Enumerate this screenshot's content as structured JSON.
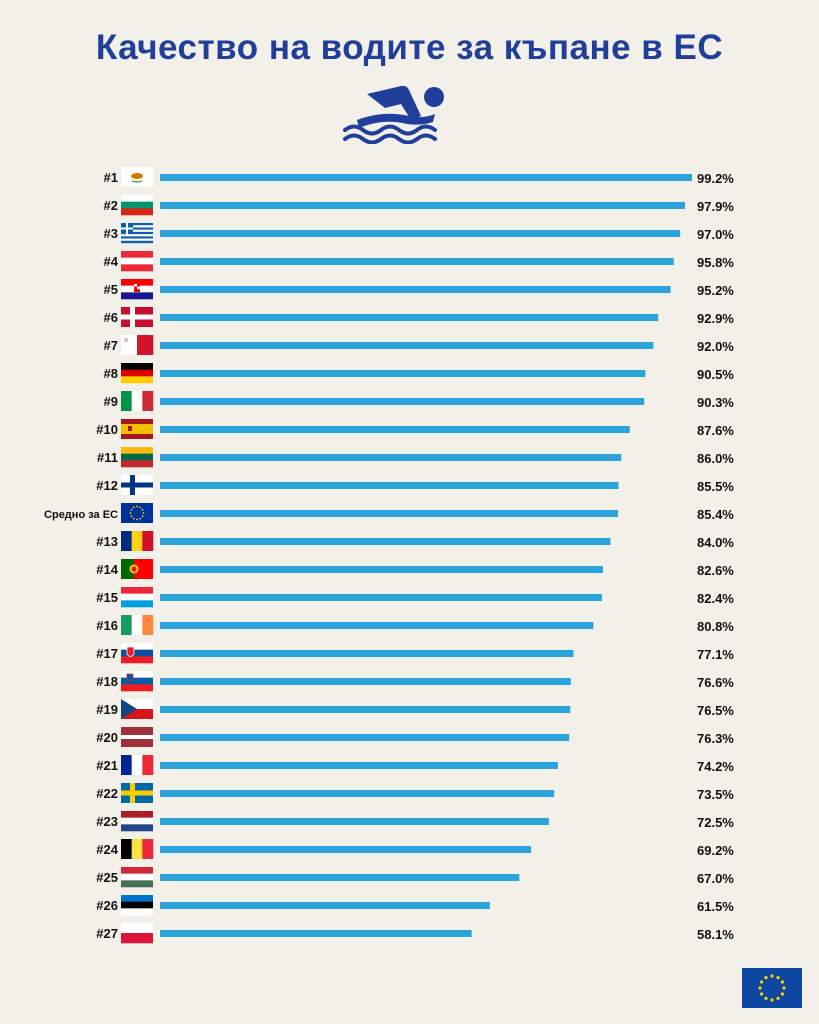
{
  "title": "Качество на водите за къпане в ЕС",
  "colors": {
    "bar": "#2ba4dc",
    "title": "#1f3f9a",
    "background": "#f3f0ea",
    "eu_blue": "#0e47a1",
    "eu_star": "#ffd200"
  },
  "icons": {
    "header": "swimmer-icon",
    "footer": "eu-flag-icon"
  },
  "chart_data": {
    "type": "bar",
    "orientation": "horizontal",
    "title": "Качество на водите за къпане в ЕС",
    "value_suffix": "%",
    "items": [
      {
        "rank": "#1",
        "flag": "cyprus",
        "value": 99.2,
        "label": "99.2%"
      },
      {
        "rank": "#2",
        "flag": "bulgaria",
        "value": 97.9,
        "label": "97.9%"
      },
      {
        "rank": "#3",
        "flag": "greece",
        "value": 97.0,
        "label": "97.0%"
      },
      {
        "rank": "#4",
        "flag": "austria",
        "value": 95.8,
        "label": "95.8%"
      },
      {
        "rank": "#5",
        "flag": "croatia",
        "value": 95.2,
        "label": "95.2%"
      },
      {
        "rank": "#6",
        "flag": "denmark",
        "value": 92.9,
        "label": "92.9%"
      },
      {
        "rank": "#7",
        "flag": "malta",
        "value": 92.0,
        "label": "92.0%"
      },
      {
        "rank": "#8",
        "flag": "germany",
        "value": 90.5,
        "label": "90.5%"
      },
      {
        "rank": "#9",
        "flag": "italy",
        "value": 90.3,
        "label": "90.3%"
      },
      {
        "rank": "#10",
        "flag": "spain",
        "value": 87.6,
        "label": "87.6%"
      },
      {
        "rank": "#11",
        "flag": "lithuania",
        "value": 86.0,
        "label": "86.0%"
      },
      {
        "rank": "#12",
        "flag": "finland",
        "value": 85.5,
        "label": "85.5%"
      },
      {
        "rank": "Средно за ЕС",
        "flag": "eu",
        "value": 85.4,
        "label": "85.4%"
      },
      {
        "rank": "#13",
        "flag": "romania",
        "value": 84.0,
        "label": "84.0%"
      },
      {
        "rank": "#14",
        "flag": "portugal",
        "value": 82.6,
        "label": "82.6%"
      },
      {
        "rank": "#15",
        "flag": "luxembourg",
        "value": 82.4,
        "label": "82.4%"
      },
      {
        "rank": "#16",
        "flag": "ireland",
        "value": 80.8,
        "label": "80.8%"
      },
      {
        "rank": "#17",
        "flag": "slovakia",
        "value": 77.1,
        "label": "77.1%"
      },
      {
        "rank": "#18",
        "flag": "slovenia",
        "value": 76.6,
        "label": "76.6%"
      },
      {
        "rank": "#19",
        "flag": "czechia",
        "value": 76.5,
        "label": "76.5%"
      },
      {
        "rank": "#20",
        "flag": "latvia",
        "value": 76.3,
        "label": "76.3%"
      },
      {
        "rank": "#21",
        "flag": "france",
        "value": 74.2,
        "label": "74.2%"
      },
      {
        "rank": "#22",
        "flag": "sweden",
        "value": 73.5,
        "label": "73.5%"
      },
      {
        "rank": "#23",
        "flag": "netherlands",
        "value": 72.5,
        "label": "72.5%"
      },
      {
        "rank": "#24",
        "flag": "belgium",
        "value": 69.2,
        "label": "69.2%"
      },
      {
        "rank": "#25",
        "flag": "hungary",
        "value": 67.0,
        "label": "67.0%"
      },
      {
        "rank": "#26",
        "flag": "estonia",
        "value": 61.5,
        "label": "61.5%"
      },
      {
        "rank": "#27",
        "flag": "poland",
        "value": 58.1,
        "label": "58.1%"
      }
    ]
  }
}
